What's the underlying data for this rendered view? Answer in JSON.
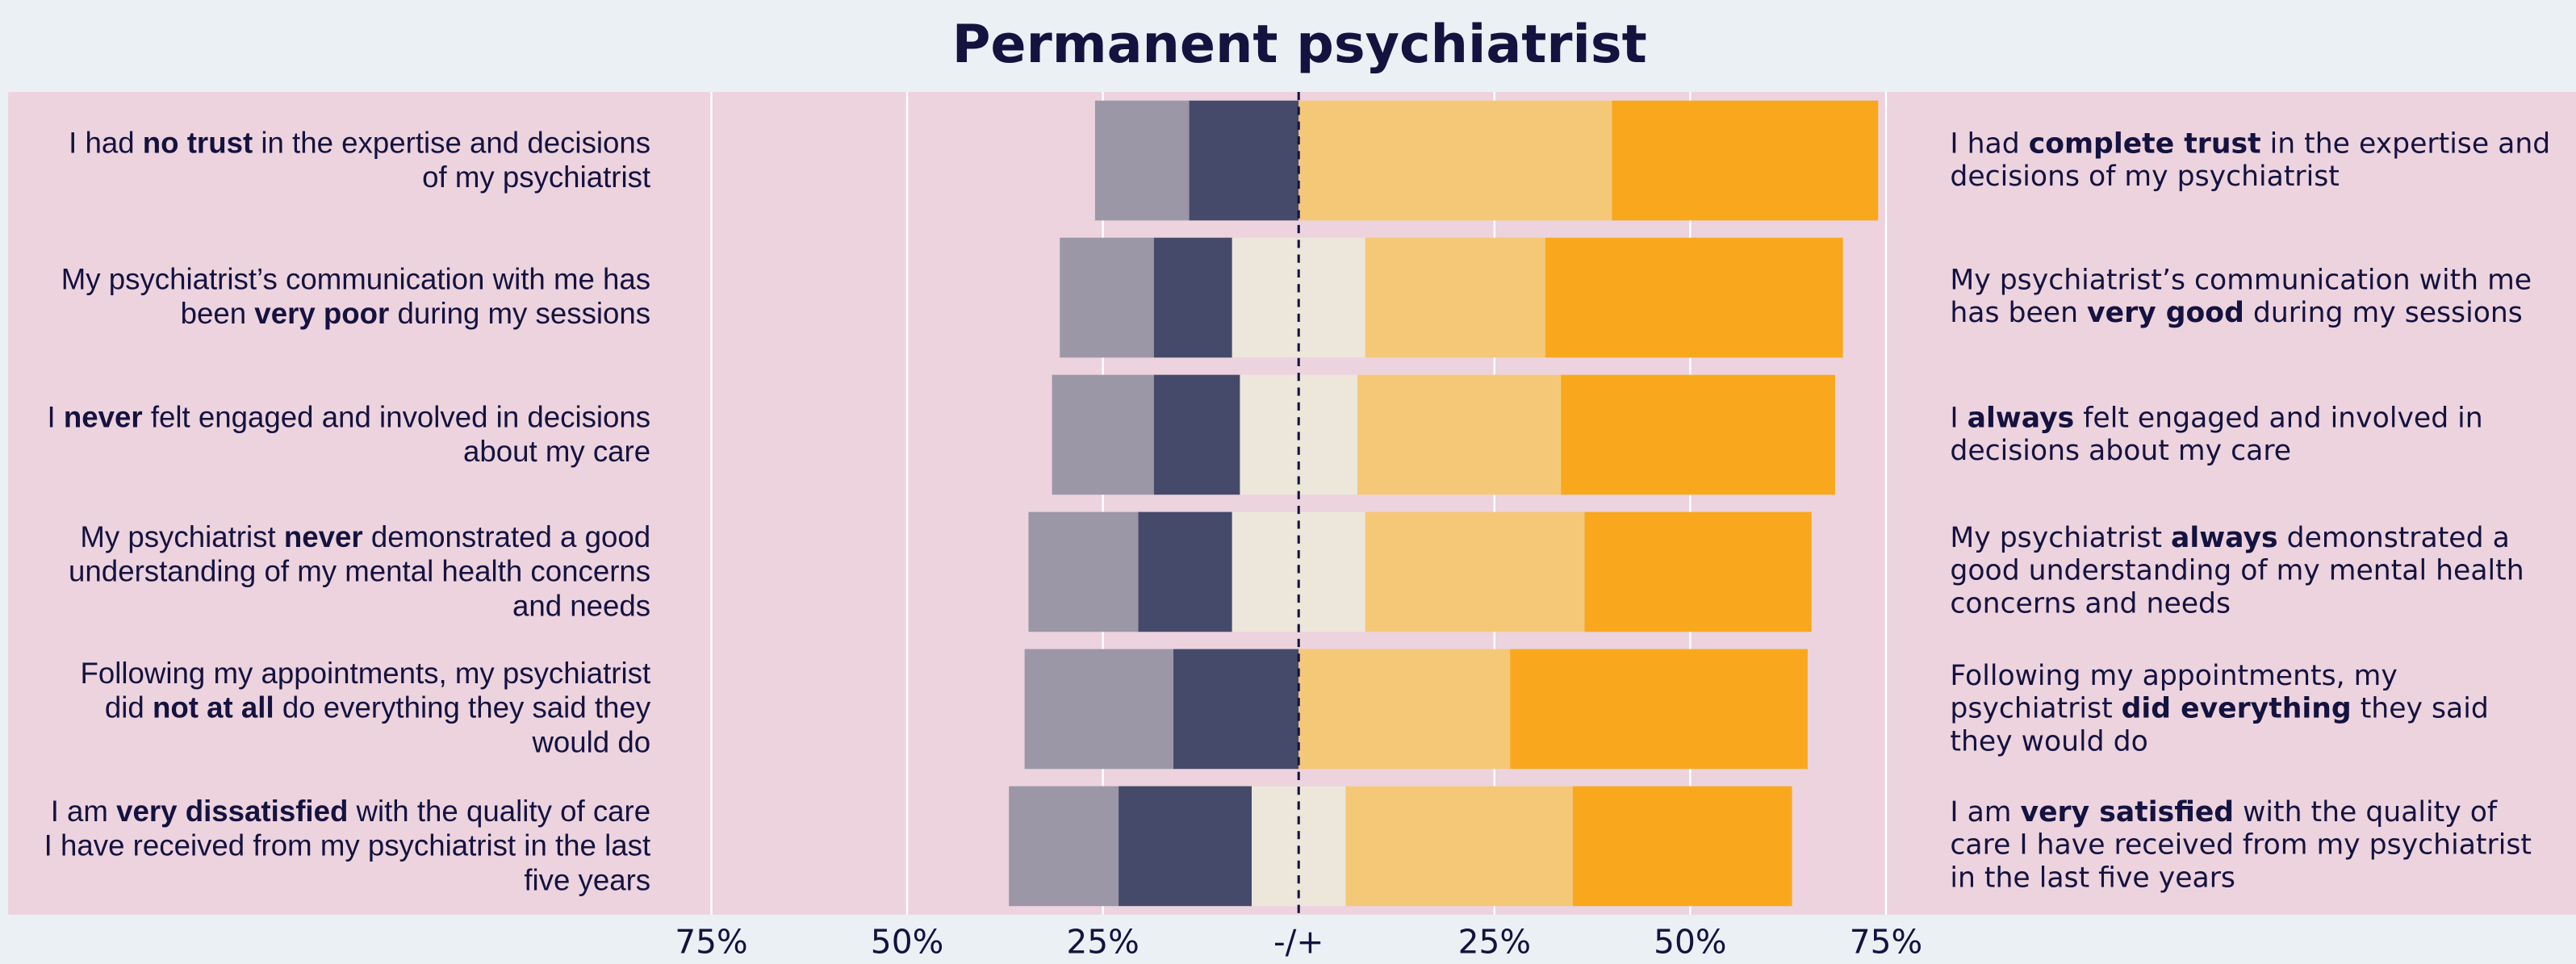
{
  "chart_data": {
    "type": "diverging_bar",
    "title": "Permanent psychiatrist",
    "left_labels": [
      {
        "pre": "I had ",
        "bold": "no trust",
        "post": " in the expertise and decisions of my psychiatrist"
      },
      {
        "pre": "My psychiatrist’s communication with me has been ",
        "bold": "very poor",
        "post": " during my sessions"
      },
      {
        "pre": "I ",
        "bold": "never",
        "post": " felt engaged and involved in decisions about my care"
      },
      {
        "pre": "My psychiatrist ",
        "bold": "never",
        "post": " demonstrated a good understanding of my mental health concerns and needs"
      },
      {
        "pre": "Following my appointments, my psychiatrist did ",
        "bold": "not at all",
        "post": " do everything they said they would do"
      },
      {
        "pre": "I am ",
        "bold": "very dissatisfied",
        "post": " with the quality of care I have received from my psychiatrist in the last five years"
      }
    ],
    "right_labels": [
      {
        "pre": "I had ",
        "bold": "complete trust",
        "post": " in the expertise and decisions of my psychiatrist"
      },
      {
        "pre": "My psychiatrist’s communication with me has been ",
        "bold": "very good",
        "post": " during my sessions"
      },
      {
        "pre": "I ",
        "bold": "always",
        "post": " felt engaged and involved in decisions about my care"
      },
      {
        "pre": "My psychiatrist ",
        "bold": "always",
        "post": " demonstrated a good understanding of my mental health concerns and needs"
      },
      {
        "pre": "Following my appointments, my psychiatrist ",
        "bold": "did everything",
        "post": " they said they would do"
      },
      {
        "pre": "I am ",
        "bold": "very satisfied",
        "post": " with the quality of care I have received from my psychiatrist in the last five years"
      }
    ],
    "series": [
      {
        "side": "left",
        "color": "#454a6a",
        "values": [
          14,
          10,
          11,
          12,
          16,
          17
        ]
      },
      {
        "side": "left",
        "color": "#9b97a7",
        "values": [
          12,
          12,
          13,
          14,
          19,
          14
        ]
      },
      {
        "side": "center",
        "color": "#ede6da",
        "values": [
          0,
          17,
          15,
          17,
          0,
          12
        ]
      },
      {
        "side": "right",
        "color": "#f5c878",
        "values": [
          40,
          23,
          26,
          28,
          27,
          29
        ]
      },
      {
        "side": "right",
        "color": "#f9a81e",
        "values": [
          34,
          38,
          35,
          29,
          38,
          28
        ]
      }
    ],
    "xlim": [
      -75,
      75
    ],
    "xticks": [
      {
        "value": -75,
        "label": "75%"
      },
      {
        "value": -50,
        "label": "50%"
      },
      {
        "value": -25,
        "label": "25%"
      },
      {
        "value": 0,
        "label": "-/+"
      },
      {
        "value": 25,
        "label": "25%"
      },
      {
        "value": 50,
        "label": "50%"
      },
      {
        "value": 75,
        "label": "75%"
      }
    ],
    "grid": true
  }
}
